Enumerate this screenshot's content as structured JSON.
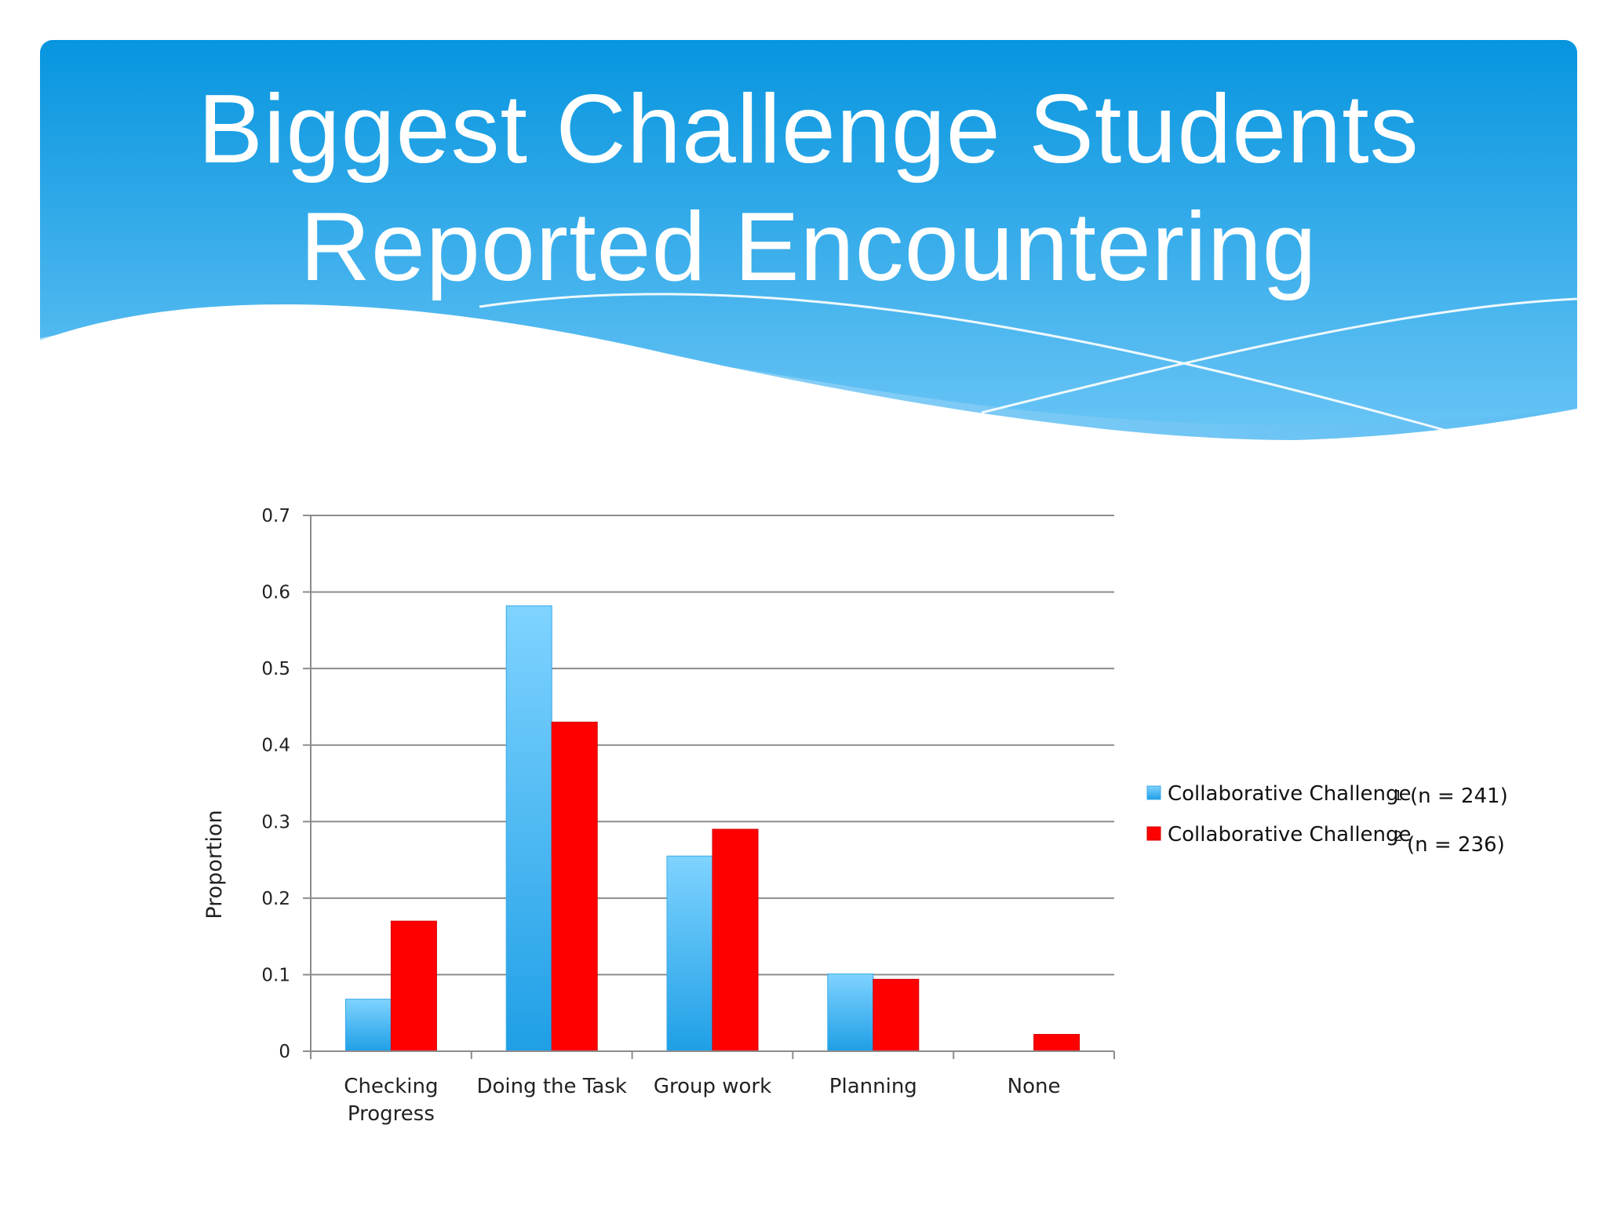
{
  "slide": {
    "title_lines": [
      "Biggest Challenge Students",
      "Reported Encountering"
    ]
  },
  "colors": {
    "banner_top": "#0795DF",
    "banner_bottom": "#6CC6F6",
    "series1": "#4DB5EE",
    "series2": "#FF0000",
    "grid": "#8C8C8C"
  },
  "chart_data": {
    "type": "bar",
    "title": "",
    "xlabel": "",
    "ylabel": "Proportion",
    "ylim": [
      0,
      0.7
    ],
    "yticks": [
      "0",
      "0.1",
      "0.2",
      "0.3",
      "0.4",
      "0.5",
      "0.6",
      "0.7"
    ],
    "grid": true,
    "legend_position": "right",
    "categories": [
      "Checking Progress",
      "Doing the Task",
      "Group work",
      "Planning",
      "None"
    ],
    "category_lines": [
      [
        "Checking",
        "Progress"
      ],
      [
        "Doing the Task"
      ],
      [
        "Group work"
      ],
      [
        "Planning"
      ],
      [
        "None"
      ]
    ],
    "series": [
      {
        "name": "Collaborative Challenge 1 (n = 241)",
        "legend_main": "Collaborative Challenge",
        "legend_num": "1",
        "legend_n": "(n = 241)",
        "values": [
          0.068,
          0.582,
          0.255,
          0.101,
          0.0
        ]
      },
      {
        "name": "Collaborative Challenge 2 (n = 236)",
        "legend_main": "Collaborative Challenge",
        "legend_num": "2",
        "legend_n": "(n = 236)",
        "values": [
          0.17,
          0.43,
          0.29,
          0.094,
          0.022
        ]
      }
    ]
  }
}
